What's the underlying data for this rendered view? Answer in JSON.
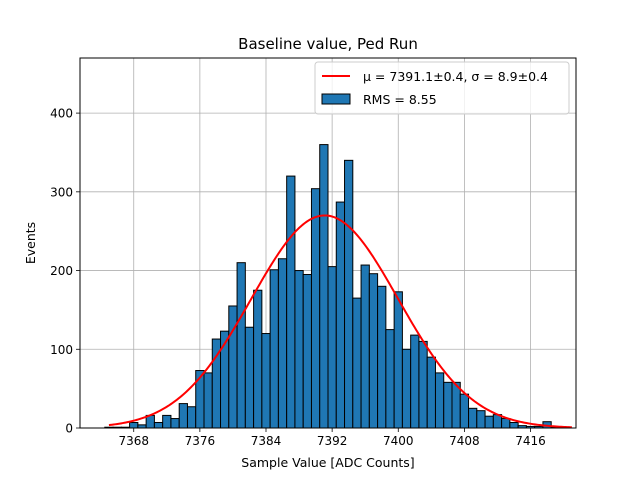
{
  "chart_data": {
    "type": "bar",
    "title": "Baseline value, Ped Run",
    "xlabel": "Sample Value [ADC Counts]",
    "ylabel": "Events",
    "xlim": [
      7361.5,
      7421.5
    ],
    "ylim": [
      0,
      470
    ],
    "xticks": [
      7368,
      7376,
      7384,
      7392,
      7400,
      7408,
      7416
    ],
    "yticks": [
      0,
      100,
      200,
      300,
      400
    ],
    "grid": true,
    "legend_position": "top-right",
    "colors": {
      "bar_fill": "#1f77b4",
      "bar_edge": "#000000",
      "fit_line": "#ff0000",
      "grid": "#b0b0b0"
    },
    "histogram": {
      "name": "RMS = 8.55",
      "bin_width": 1,
      "bin_centers": [
        7365,
        7366,
        7367,
        7368,
        7369,
        7370,
        7371,
        7372,
        7373,
        7374,
        7375,
        7376,
        7377,
        7378,
        7379,
        7380,
        7381,
        7382,
        7383,
        7384,
        7385,
        7386,
        7387,
        7388,
        7389,
        7390,
        7391,
        7392,
        7393,
        7394,
        7395,
        7396,
        7397,
        7398,
        7399,
        7400,
        7401,
        7402,
        7403,
        7404,
        7405,
        7406,
        7407,
        7408,
        7409,
        7410,
        7411,
        7412,
        7413,
        7414,
        7415,
        7416,
        7417,
        7418,
        7419
      ],
      "counts": [
        1,
        1,
        1,
        7,
        4,
        16,
        7,
        16,
        12,
        31,
        27,
        73,
        70,
        113,
        123,
        155,
        210,
        128,
        175,
        120,
        201,
        215,
        320,
        200,
        195,
        304,
        360,
        205,
        287,
        340,
        165,
        207,
        196,
        180,
        125,
        173,
        100,
        118,
        110,
        90,
        70,
        58,
        58,
        43,
        25,
        22,
        15,
        17,
        12,
        7,
        3,
        2,
        2,
        8,
        1
      ]
    },
    "fit": {
      "name": "μ = 7391.1±0.4, σ = 8.9±0.4",
      "mu": 7391.1,
      "sigma": 8.9,
      "amplitude": 270,
      "x_range": [
        7365,
        7421
      ]
    }
  },
  "legend": {
    "fit_label": "μ = 7391.1±0.4, σ = 8.9±0.4",
    "hist_label": "RMS = 8.55"
  }
}
